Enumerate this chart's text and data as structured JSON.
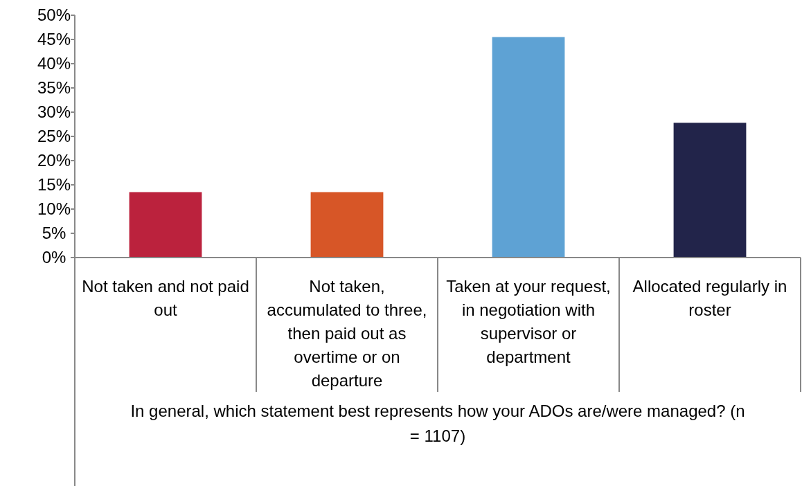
{
  "chart_data": {
    "type": "bar",
    "categories": [
      "Not taken and not paid out",
      "Not taken, accumulated to three, then paid out as overtime or on departure",
      "Taken at your request, in negotiation with supervisor or department",
      "Allocated regularly in roster"
    ],
    "values": [
      13.5,
      13.5,
      45.5,
      27.8
    ],
    "colors": [
      "#bb223d",
      "#d75627",
      "#5ea2d4",
      "#22244a"
    ],
    "xlabel": "In general, which statement best represents how your ADOs are/were managed? (n = 1107)",
    "ylim": [
      0,
      50
    ],
    "yticks": [
      {
        "value": 0,
        "label": "0%"
      },
      {
        "value": 5,
        "label": "5%"
      },
      {
        "value": 10,
        "label": "10%"
      },
      {
        "value": 15,
        "label": "15%"
      },
      {
        "value": 20,
        "label": "20%"
      },
      {
        "value": 25,
        "label": "25%"
      },
      {
        "value": 30,
        "label": "30%"
      },
      {
        "value": 35,
        "label": "35%"
      },
      {
        "value": 40,
        "label": "40%"
      },
      {
        "value": 45,
        "label": "45%"
      },
      {
        "value": 50,
        "label": "50%"
      }
    ],
    "grid": false
  }
}
